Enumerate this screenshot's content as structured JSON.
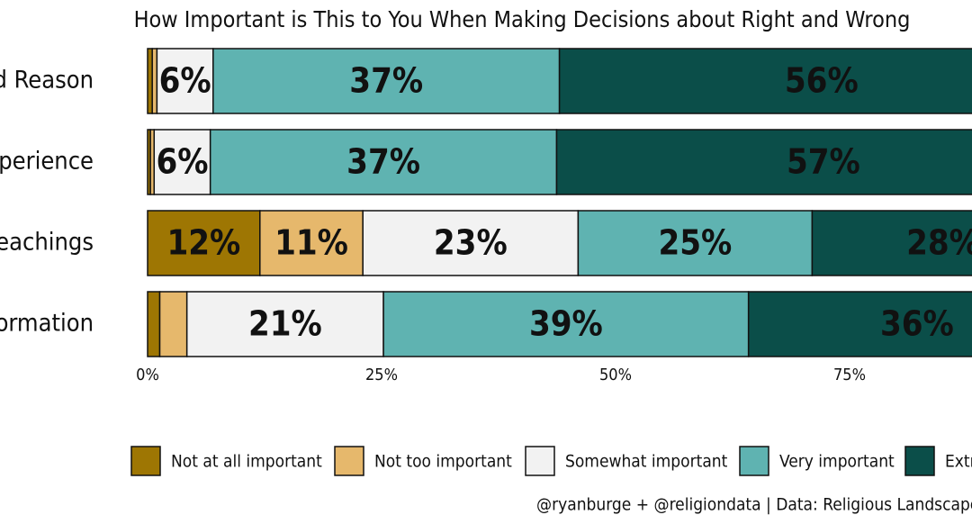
{
  "chart_data": {
    "type": "stacked-bar-horizontal",
    "title": "How Important is This to You When Making Decisions about Right and Wrong",
    "categories": [
      "d Reason",
      "perience",
      "eachings",
      "ormation"
    ],
    "series": [
      {
        "name": "Not at all important",
        "color": "#9e7603",
        "values": [
          0.5,
          0.3,
          12,
          1.3
        ],
        "value_labels": [
          null,
          null,
          "12%",
          null
        ]
      },
      {
        "name": "Not too important",
        "color": "#e6b86c",
        "values": [
          0.5,
          0.4,
          11,
          2.9
        ],
        "value_labels": [
          null,
          null,
          "11%",
          null
        ]
      },
      {
        "name": "Somewhat important",
        "color": "#f2f2f2",
        "values": [
          6,
          6,
          23,
          21
        ],
        "value_labels": [
          "6%",
          "6%",
          "23%",
          "21%"
        ]
      },
      {
        "name": "Very important",
        "color": "#5fb3b1",
        "values": [
          37,
          37,
          25,
          39
        ],
        "value_labels": [
          "37%",
          "37%",
          "25%",
          "39%"
        ]
      },
      {
        "name": "Extr",
        "color": "#0b4e49",
        "values": [
          56,
          57,
          28,
          36
        ],
        "value_labels": [
          "56%",
          "57%",
          "28%",
          "36%"
        ]
      }
    ],
    "xlim": [
      0,
      100
    ],
    "xticks": [
      {
        "value": 0,
        "label": "0%"
      },
      {
        "value": 25,
        "label": "25%"
      },
      {
        "value": 50,
        "label": "50%"
      },
      {
        "value": 75,
        "label": "75%"
      }
    ],
    "caption": "@ryanburge + @religiondata | Data: Religious Landscape"
  }
}
